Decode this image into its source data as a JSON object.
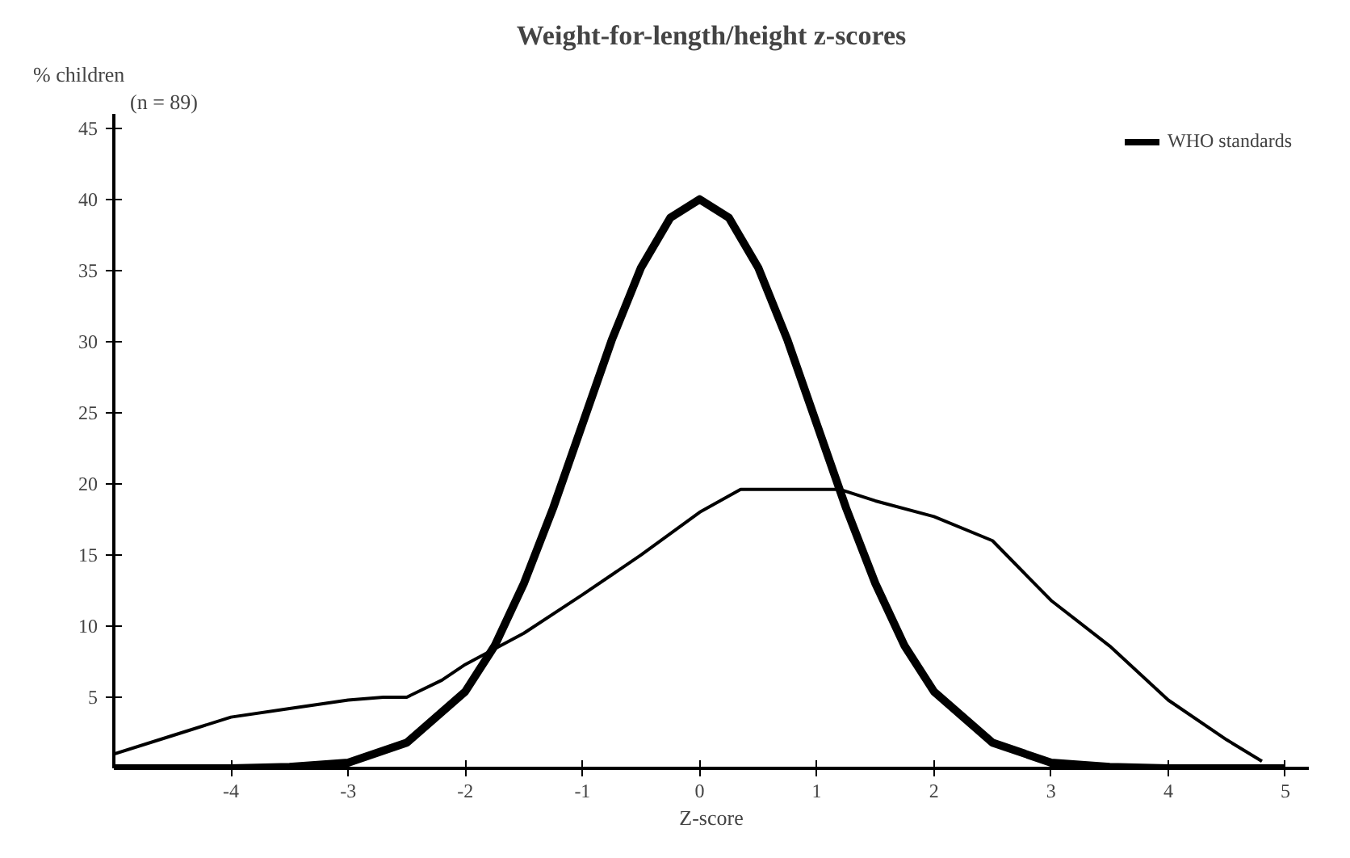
{
  "chart_data": {
    "type": "line",
    "title": "Weight-for-length/height z-scores",
    "xlabel": "Z-score",
    "ylabel": "% children",
    "annotations": [
      "(n = 89)"
    ],
    "xlim": [
      -5,
      5.2
    ],
    "ylim": [
      0,
      46
    ],
    "xticks": [
      -4,
      -3,
      -2,
      -1,
      0,
      1,
      2,
      3,
      4,
      5
    ],
    "yticks": [
      5,
      10,
      15,
      20,
      25,
      30,
      35,
      40,
      45
    ],
    "grid": false,
    "legend": "top right",
    "marker": "none",
    "line_style": "solid",
    "series": [
      {
        "name": "WHO standards",
        "color": "#000000",
        "x": [
          -5,
          -4,
          -3.5,
          -3,
          -2.5,
          -2,
          -1.75,
          -1.5,
          -1.25,
          -1,
          -0.75,
          -0.5,
          -0.25,
          0,
          0.25,
          0.5,
          0.75,
          1,
          1.25,
          1.5,
          1.75,
          2,
          2.5,
          3,
          3.5,
          4,
          5
        ],
        "values": [
          0,
          0,
          0.1,
          0.4,
          1.8,
          5.4,
          8.6,
          13,
          18.3,
          24.2,
          30.1,
          35.2,
          38.7,
          40,
          38.7,
          35.2,
          30.1,
          24.2,
          18.3,
          13,
          8.6,
          5.4,
          1.8,
          0.4,
          0.1,
          0,
          0
        ]
      },
      {
        "color": "#000000",
        "x": [
          -5,
          -4.5,
          -4,
          -3.5,
          -3,
          -2.7,
          -2.5,
          -2.2,
          -2,
          -1.5,
          -1,
          -0.5,
          0,
          0.35,
          0.7,
          1.2,
          1.5,
          2,
          2.5,
          3,
          3.5,
          4,
          4.5,
          4.8
        ],
        "values": [
          1,
          2.3,
          3.6,
          4.2,
          4.8,
          5,
          5,
          6.2,
          7.3,
          9.5,
          12.2,
          15,
          18,
          19.6,
          19.6,
          19.6,
          18.8,
          17.7,
          16,
          11.8,
          8.6,
          4.8,
          2,
          0.5
        ]
      }
    ]
  }
}
